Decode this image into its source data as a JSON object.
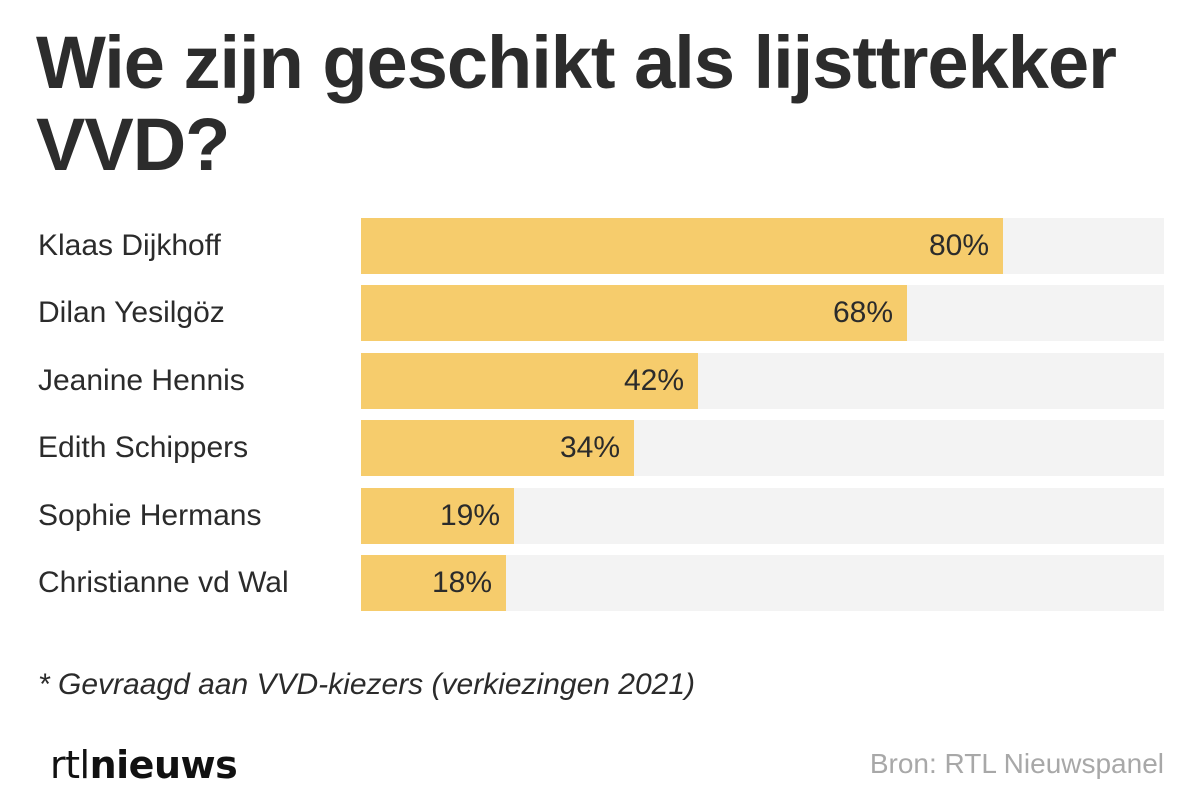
{
  "chart_data": {
    "type": "bar",
    "orientation": "horizontal",
    "title": "Wie zijn geschikt als lijsttrekker VVD?",
    "categories": [
      "Klaas Dijkhoff",
      "Dilan Yesilgöz",
      "Jeanine Hennis",
      "Edith Schippers",
      "Sophie Hermans",
      "Christianne vd Wal"
    ],
    "values": [
      80,
      68,
      42,
      34,
      19,
      18
    ],
    "value_labels": [
      "80%",
      "68%",
      "42%",
      "34%",
      "19%",
      "18%"
    ],
    "xlim": [
      0,
      100
    ],
    "unit": "%",
    "grid": false,
    "legend": "none",
    "colors": {
      "bar": "#f6cc6c",
      "track": "#f3f3f3",
      "text": "#2b2b2b"
    }
  },
  "footnote": "* Gevraagd aan VVD-kiezers (verkiezingen 2021)",
  "logo": {
    "rtl": "rtl",
    "nieuws": "nieuws"
  },
  "source": "Bron: RTL Nieuwspanel"
}
